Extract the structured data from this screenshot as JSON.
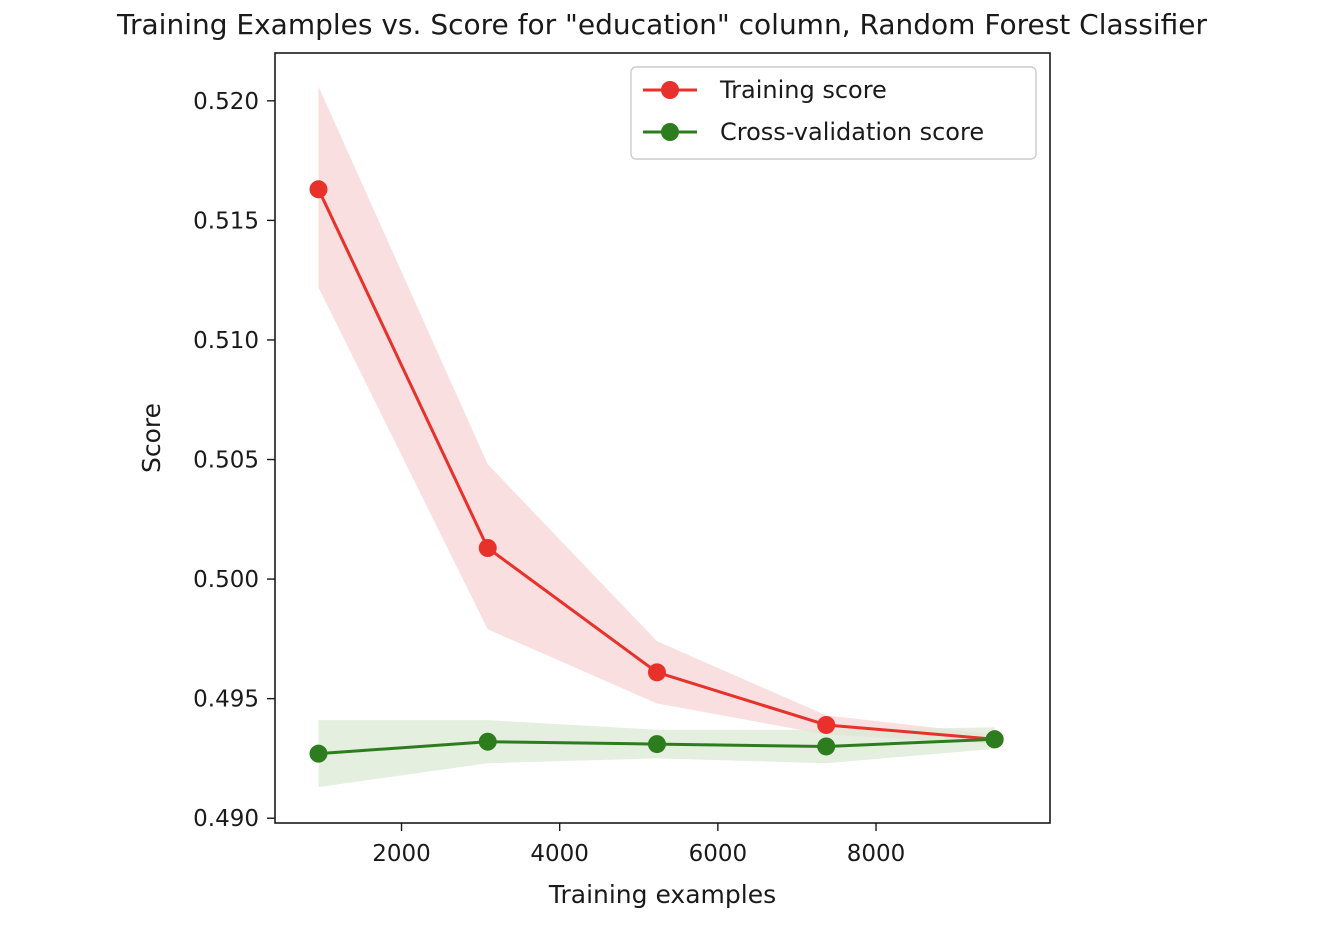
{
  "chart_data": {
    "type": "line",
    "title": "Training Examples vs. Score for \"education\" column, Random Forest Classifier",
    "xlabel": "Training examples",
    "ylabel": "Score",
    "xlim": [
      400,
      10200
    ],
    "ylim": [
      0.4898,
      0.522
    ],
    "x_ticks": [
      2000,
      4000,
      6000,
      8000
    ],
    "x_tick_labels": [
      "2000",
      "4000",
      "6000",
      "8000"
    ],
    "y_ticks": [
      0.49,
      0.495,
      0.5,
      0.505,
      0.51,
      0.515,
      0.52
    ],
    "y_tick_labels": [
      "0.490",
      "0.495",
      "0.500",
      "0.505",
      "0.510",
      "0.515",
      "0.520"
    ],
    "grid": false,
    "legend_position": "top-right",
    "x": [
      950,
      3090,
      5230,
      7370,
      9500
    ],
    "series": [
      {
        "name": "Training score",
        "color": "#e8312a",
        "fill_color": "#f7d4d4",
        "values": [
          0.5163,
          0.5013,
          0.4961,
          0.4939,
          0.4933
        ],
        "lower": [
          0.5122,
          0.4979,
          0.4948,
          0.4935,
          0.4931
        ],
        "upper": [
          0.5206,
          0.5048,
          0.4974,
          0.4943,
          0.4935
        ]
      },
      {
        "name": "Cross-validation score",
        "color": "#2d7d1f",
        "fill_color": "#dbe9d6",
        "values": [
          0.4927,
          0.4932,
          0.4931,
          0.493,
          0.4933
        ],
        "lower": [
          0.4913,
          0.4923,
          0.4925,
          0.4923,
          0.4929
        ],
        "upper": [
          0.4941,
          0.4941,
          0.4937,
          0.4937,
          0.4938
        ]
      }
    ]
  }
}
